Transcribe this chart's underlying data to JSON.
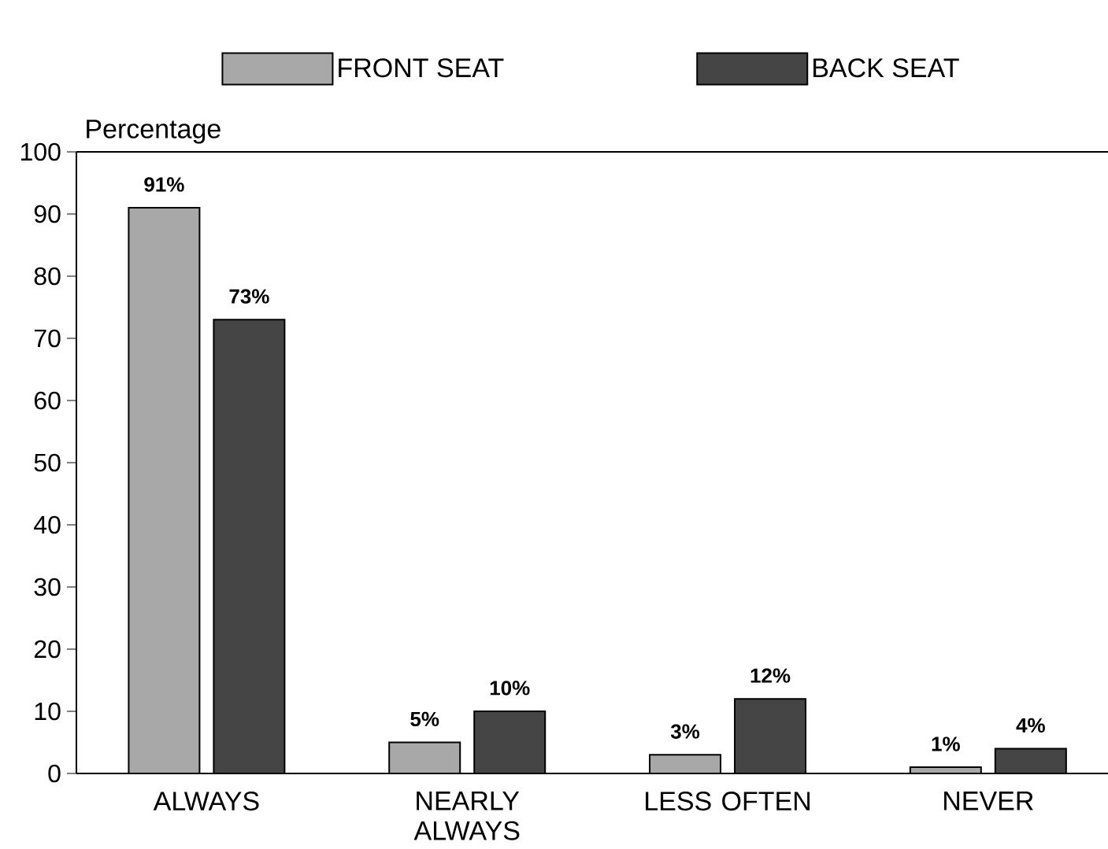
{
  "chart_data": {
    "type": "bar",
    "ylabel": "Percentage",
    "categories": [
      "ALWAYS",
      "NEARLY ALWAYS",
      "LESS OFTEN",
      "NEVER"
    ],
    "series": [
      {
        "name": "FRONT SEAT",
        "color": "#a8a8a8",
        "values": [
          91,
          5,
          3,
          1
        ],
        "value_labels": [
          "91%",
          "5%",
          "3%",
          "1%"
        ]
      },
      {
        "name": "BACK SEAT",
        "color": "#454545",
        "values": [
          73,
          10,
          12,
          4
        ],
        "value_labels": [
          "73%",
          "10%",
          "12%",
          "4%"
        ]
      }
    ],
    "ylim": [
      0,
      100
    ],
    "yticks": [
      0,
      10,
      20,
      30,
      40,
      50,
      60,
      70,
      80,
      90,
      100
    ],
    "grid": false,
    "legend": "top"
  }
}
